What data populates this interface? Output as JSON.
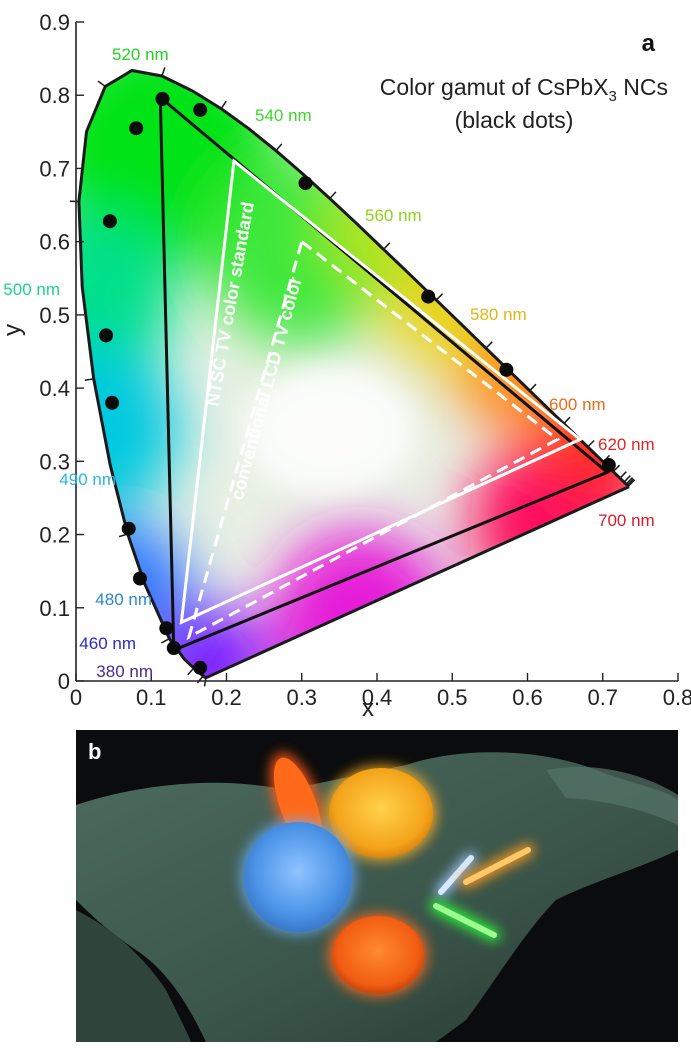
{
  "panel_a": {
    "letter": "a",
    "title_line1_main": "Color gamut of CsPbX",
    "title_line1_sub": "3",
    "title_line1_end": " NCs",
    "title_line2": "(black dots)",
    "ntsc_label": "NTSC TV color standard",
    "lcd_label": "conventional LCD TV color"
  },
  "panel_b": {
    "letter": "b"
  },
  "chart_data": {
    "type": "scatter",
    "title": "Color gamut of CsPbX3 NCs (black dots)",
    "xlabel": "x",
    "ylabel": "y",
    "xlim": [
      0,
      0.8
    ],
    "ylim": [
      0,
      0.9
    ],
    "xticks": [
      "0",
      "0.1",
      "0.2",
      "0.3",
      "0.4",
      "0.5",
      "0.6",
      "0.7",
      "0.8"
    ],
    "yticks": [
      "0",
      "0.1",
      "0.2",
      "0.3",
      "0.4",
      "0.5",
      "0.6",
      "0.7",
      "0.8",
      "0.9"
    ],
    "grid": false,
    "locus": [
      [
        0.1741,
        0.005
      ],
      [
        0.1738,
        0.0049
      ],
      [
        0.1736,
        0.0049
      ],
      [
        0.1733,
        0.0048
      ],
      [
        0.1726,
        0.0048
      ],
      [
        0.1714,
        0.0051
      ],
      [
        0.1689,
        0.0069
      ],
      [
        0.1644,
        0.0109
      ],
      [
        0.1566,
        0.0177
      ],
      [
        0.144,
        0.0297
      ],
      [
        0.1241,
        0.0578
      ],
      [
        0.0913,
        0.1327
      ],
      [
        0.0687,
        0.2007
      ],
      [
        0.0454,
        0.295
      ],
      [
        0.0235,
        0.4127
      ],
      [
        0.0082,
        0.5384
      ],
      [
        0.0039,
        0.6548
      ],
      [
        0.0139,
        0.7502
      ],
      [
        0.0389,
        0.812
      ],
      [
        0.0743,
        0.8338
      ],
      [
        0.1142,
        0.8262
      ],
      [
        0.1547,
        0.8059
      ],
      [
        0.1929,
        0.7816
      ],
      [
        0.2296,
        0.7543
      ],
      [
        0.2658,
        0.7243
      ],
      [
        0.3016,
        0.6923
      ],
      [
        0.3373,
        0.6589
      ],
      [
        0.3731,
        0.6245
      ],
      [
        0.4087,
        0.5896
      ],
      [
        0.4441,
        0.5547
      ],
      [
        0.4788,
        0.5202
      ],
      [
        0.5125,
        0.4866
      ],
      [
        0.5448,
        0.4544
      ],
      [
        0.5752,
        0.4242
      ],
      [
        0.6029,
        0.3965
      ],
      [
        0.627,
        0.3725
      ],
      [
        0.6482,
        0.3514
      ],
      [
        0.6658,
        0.334
      ],
      [
        0.6801,
        0.3197
      ],
      [
        0.6915,
        0.3083
      ],
      [
        0.7006,
        0.2993
      ],
      [
        0.7079,
        0.292
      ],
      [
        0.714,
        0.2859
      ],
      [
        0.719,
        0.2809
      ],
      [
        0.723,
        0.277
      ],
      [
        0.726,
        0.274
      ],
      [
        0.7283,
        0.2717
      ],
      [
        0.73,
        0.27
      ],
      [
        0.7311,
        0.2689
      ],
      [
        0.732,
        0.268
      ],
      [
        0.7327,
        0.2673
      ],
      [
        0.7334,
        0.2666
      ],
      [
        0.734,
        0.266
      ],
      [
        0.7344,
        0.2656
      ],
      [
        0.7346,
        0.2654
      ],
      [
        0.7347,
        0.2653
      ]
    ],
    "wavelength_labels": [
      {
        "text": "520 nm",
        "color": "#1fd51f"
      },
      {
        "text": "540 nm",
        "color": "#3fd52a"
      },
      {
        "text": "560 nm",
        "color": "#8fd21a"
      },
      {
        "text": "580 nm",
        "color": "#e3b514"
      },
      {
        "text": "600 nm",
        "color": "#ec6c17"
      },
      {
        "text": "620 nm",
        "color": "#e62323"
      },
      {
        "text": "700 nm",
        "color": "#d91a2a"
      },
      {
        "text": "500 nm",
        "color": "#1bd48a"
      },
      {
        "text": "490 nm",
        "color": "#25b8e6"
      },
      {
        "text": "480 nm",
        "color": "#2a86d8"
      },
      {
        "text": "460 nm",
        "color": "#2a2ad0"
      },
      {
        "text": "380 nm",
        "color": "#4a2a90"
      }
    ],
    "series": [
      {
        "name": "CsPbX3 NCs",
        "points": [
          [
            0.115,
            0.795
          ],
          [
            0.08,
            0.755
          ],
          [
            0.165,
            0.78
          ],
          [
            0.045,
            0.628
          ],
          [
            0.04,
            0.472
          ],
          [
            0.048,
            0.38
          ],
          [
            0.07,
            0.208
          ],
          [
            0.085,
            0.14
          ],
          [
            0.12,
            0.072
          ],
          [
            0.13,
            0.045
          ],
          [
            0.165,
            0.018
          ],
          [
            0.305,
            0.68
          ],
          [
            0.468,
            0.525
          ],
          [
            0.572,
            0.425
          ],
          [
            0.708,
            0.295
          ]
        ]
      },
      {
        "name": "CsPbX3 gamut",
        "points": [
          [
            0.112,
            0.797
          ],
          [
            0.706,
            0.285
          ],
          [
            0.13,
            0.042
          ]
        ]
      },
      {
        "name": "NTSC TV color standard",
        "points": [
          [
            0.21,
            0.71
          ],
          [
            0.67,
            0.33
          ],
          [
            0.14,
            0.08
          ]
        ]
      },
      {
        "name": "conventional LCD TV color",
        "points": [
          [
            0.3,
            0.6
          ],
          [
            0.64,
            0.33
          ],
          [
            0.15,
            0.06
          ]
        ]
      }
    ]
  }
}
